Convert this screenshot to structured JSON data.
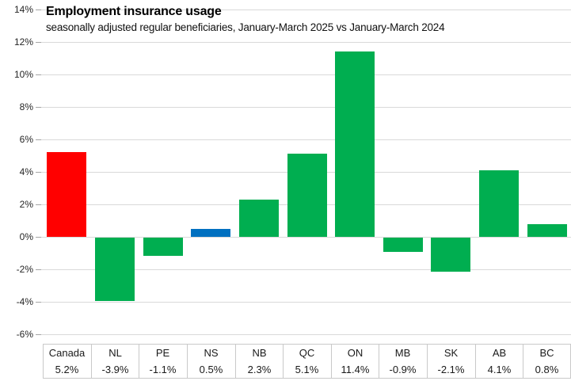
{
  "header": {
    "title": "Employment insurance usage",
    "subtitle": "seasonally adjusted regular beneficiaries, January-March 2025 vs January-March 2024"
  },
  "chart_data": {
    "type": "bar",
    "title": "Employment insurance usage",
    "subtitle": "seasonally adjusted regular beneficiaries, January-March 2025 vs January-March 2024",
    "categories": [
      "Canada",
      "NL",
      "PE",
      "NS",
      "NB",
      "QC",
      "ON",
      "MB",
      "SK",
      "AB",
      "BC"
    ],
    "values": [
      5.2,
      -3.9,
      -1.1,
      0.5,
      2.3,
      5.1,
      11.4,
      -0.9,
      -2.1,
      4.1,
      0.8
    ],
    "value_labels": [
      "5.2%",
      "-3.9%",
      "-1.1%",
      "0.5%",
      "2.3%",
      "5.1%",
      "11.4%",
      "-0.9%",
      "-2.1%",
      "4.1%",
      "0.8%"
    ],
    "bar_colors": [
      "#ff0000",
      "#00ae50",
      "#00ae50",
      "#0070c0",
      "#00ae50",
      "#00ae50",
      "#00ae50",
      "#00ae50",
      "#00ae50",
      "#00ae50",
      "#00ae50"
    ],
    "colors": {
      "canada": "#ff0000",
      "nova_scotia": "#0070c0",
      "other_provinces": "#00ae50",
      "gridline": "#d9d9d9",
      "table_border": "#c9c9c9"
    },
    "ylim": [
      -6,
      14
    ],
    "ytick_step": 2,
    "ytick_labels": [
      "14%",
      "12%",
      "10%",
      "8%",
      "6%",
      "4%",
      "2%",
      "0%",
      "-2%",
      "-4%",
      "-6%"
    ],
    "grid": true,
    "legend_position": "none",
    "data_table_shown": true
  }
}
